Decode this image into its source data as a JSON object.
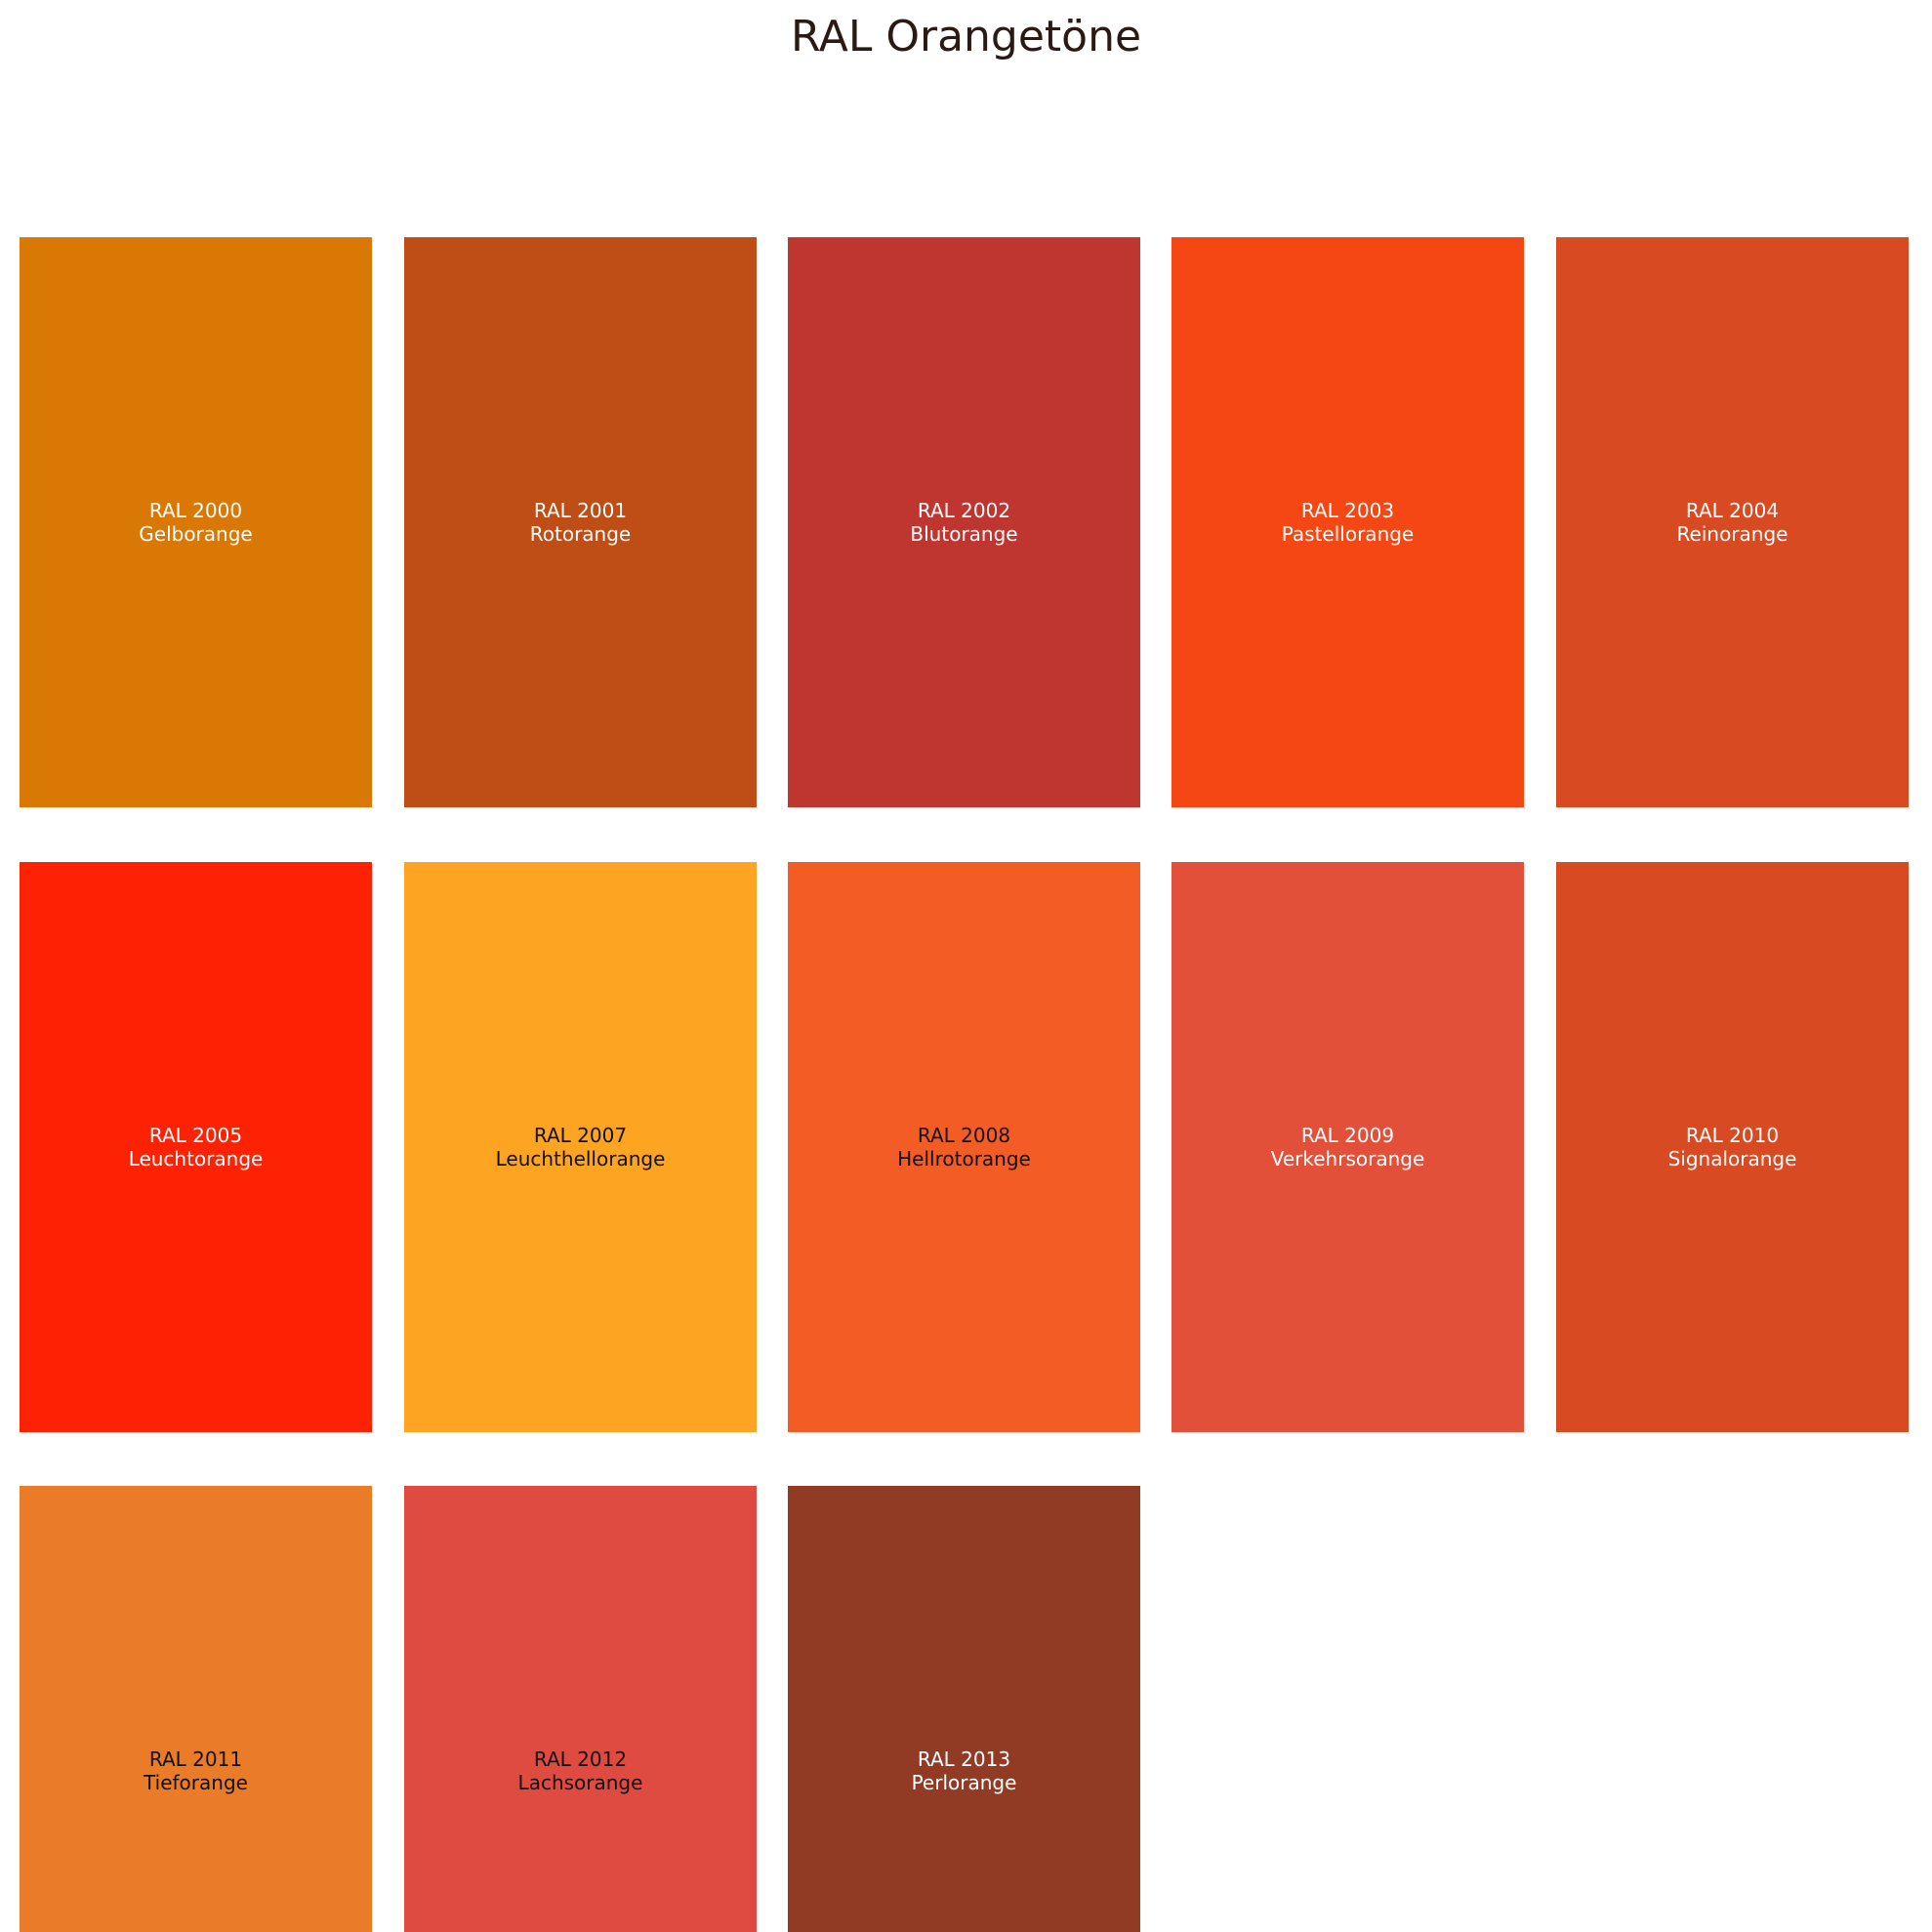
{
  "title": "RAL Orangetöne",
  "swatches": [
    {
      "code": "RAL 2000",
      "name": "Gelborange",
      "color": "#DA7806",
      "text_color": "#ffffff"
    },
    {
      "code": "RAL 2001",
      "name": "Rotorange",
      "color": "#BE4D16",
      "text_color": "#ffffff"
    },
    {
      "code": "RAL 2002",
      "name": "Blutorange",
      "color": "#BF352F",
      "text_color": "#ffffff"
    },
    {
      "code": "RAL 2003",
      "name": "Pastellorange",
      "color": "#F44713",
      "text_color": "#ffffff"
    },
    {
      "code": "RAL 2004",
      "name": "Reinorange",
      "color": "#D84A21",
      "text_color": "#ffffff"
    },
    {
      "code": "RAL 2005",
      "name": "Leuchtorange",
      "color": "#FE2205",
      "text_color": "#ffffff"
    },
    {
      "code": "RAL 2007",
      "name": "Leuchthellorange",
      "color": "#FDA522",
      "text_color": "#111111"
    },
    {
      "code": "RAL 2008",
      "name": "Hellrotorange",
      "color": "#F45C26",
      "text_color": "#111111"
    },
    {
      "code": "RAL 2009",
      "name": "Verkehrsorange",
      "color": "#E3503A",
      "text_color": "#ffffff"
    },
    {
      "code": "RAL 2010",
      "name": "Signalorange",
      "color": "#D84B22",
      "text_color": "#ffffff"
    },
    {
      "code": "RAL 2011",
      "name": "Tieforange",
      "color": "#EA7C29",
      "text_color": "#111111"
    },
    {
      "code": "RAL 2012",
      "name": "Lachsorange",
      "color": "#DF4A41",
      "text_color": "#111111"
    },
    {
      "code": "RAL 2013",
      "name": "Perlorange",
      "color": "#923B24",
      "text_color": "#ffffff"
    }
  ]
}
